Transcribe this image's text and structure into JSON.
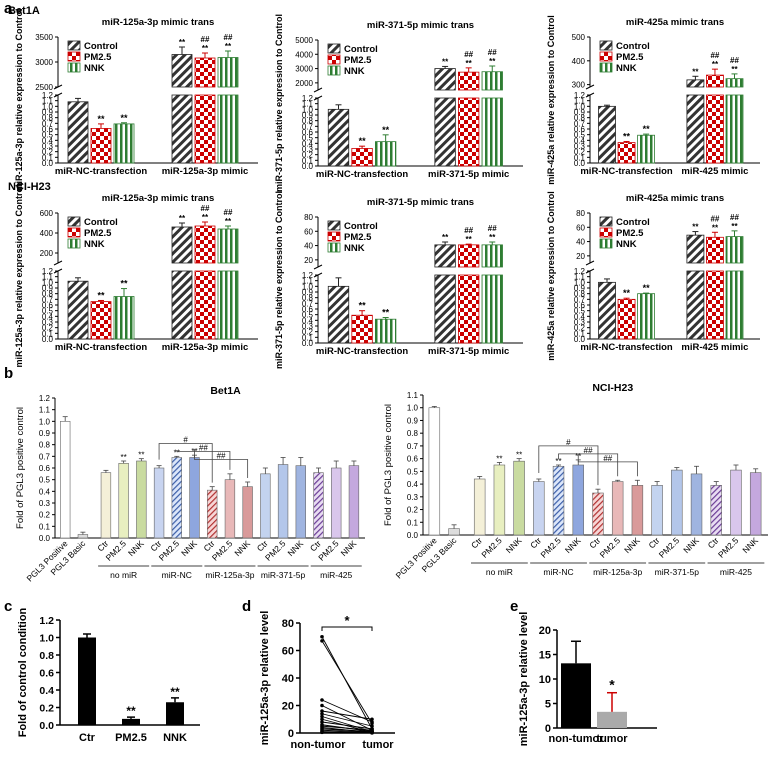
{
  "panel_labels": {
    "a": "a",
    "b": "b",
    "c": "c",
    "d": "d",
    "e": "e"
  },
  "colors": {
    "control": "#333333",
    "pm25": "#cc0000",
    "nnk": "#2e7d32",
    "black": "#000000",
    "grey": "#aaaaaa"
  },
  "chart_data": [
    {
      "id": "a1",
      "type": "bar",
      "group": "Bet1A",
      "title": "miR-125a-3p mimic trans",
      "ylabel": "miR-125a-3p relative expression to Control",
      "categories": [
        "miR-NC-transfection",
        "miR-125a-3p mimic"
      ],
      "legend": [
        "Control",
        "PM2.5",
        "NNK"
      ],
      "upper_ticks": [
        "2500",
        "3000",
        "3500"
      ],
      "upper_range": [
        2500,
        3500
      ],
      "series": [
        {
          "name": "Control",
          "values": [
            1.08,
            3150
          ],
          "errors": [
            0.06,
            150
          ]
        },
        {
          "name": "PM2.5",
          "values": [
            0.61,
            3080
          ],
          "errors": [
            0.08,
            100
          ]
        },
        {
          "name": "NNK",
          "values": [
            0.69,
            3090
          ],
          "errors": [
            0.02,
            130
          ]
        }
      ],
      "sig": [
        [
          "",
          "**",
          "**"
        ],
        [
          "**",
          "##\n**",
          "##\n**"
        ]
      ]
    },
    {
      "id": "a2",
      "type": "bar",
      "group": "Bet1A",
      "title": "miR-371-5p mimic trans",
      "ylabel": "miR-371-5p relative expression to Control",
      "categories": [
        "miR-NC-transfection",
        "miR-371-5p mimic"
      ],
      "legend": [
        "Control",
        "PM2.5",
        "NNK"
      ],
      "upper_ticks": [
        "2000",
        "3000",
        "4000",
        "5000"
      ],
      "upper_range": [
        1500,
        5000
      ],
      "series": [
        {
          "name": "Control",
          "values": [
            1.0,
            3000
          ],
          "errors": [
            0.08,
            150
          ]
        },
        {
          "name": "PM2.5",
          "values": [
            0.31,
            2750
          ],
          "errors": [
            0.04,
            300
          ]
        },
        {
          "name": "NNK",
          "values": [
            0.43,
            2780
          ],
          "errors": [
            0.12,
            400
          ]
        }
      ],
      "sig": [
        [
          "",
          "**",
          "**"
        ],
        [
          "**",
          "##\n**",
          "##\n**"
        ]
      ]
    },
    {
      "id": "a3",
      "type": "bar",
      "group": "Bet1A",
      "title": "miR-425a mimic trans",
      "ylabel": "miR-425a relative expression to Control",
      "categories": [
        "miR-NC-transfection",
        "miR-425 mimic"
      ],
      "legend": [
        "Control",
        "PM2.5",
        "NNK"
      ],
      "upper_ticks": [
        "300",
        "400",
        "500"
      ],
      "upper_range": [
        290,
        500
      ],
      "series": [
        {
          "name": "Control",
          "values": [
            1.0,
            320
          ],
          "errors": [
            0.02,
            15
          ]
        },
        {
          "name": "PM2.5",
          "values": [
            0.36,
            340
          ],
          "errors": [
            0.02,
            25
          ]
        },
        {
          "name": "NNK",
          "values": [
            0.49,
            325
          ],
          "errors": [
            0.02,
            20
          ]
        }
      ],
      "sig": [
        [
          "",
          "**",
          "**"
        ],
        [
          "**",
          "##\n**",
          "##\n**"
        ]
      ]
    },
    {
      "id": "a4",
      "type": "bar",
      "group": "NCI-H23",
      "title": "miR-125a-3p mimic trans",
      "ylabel": "miR-125a-3p relative expression to Control",
      "categories": [
        "miR-NC-transfection",
        "miR-125a-3p mimic"
      ],
      "legend": [
        "Control",
        "PM2.5",
        "NNK"
      ],
      "upper_ticks": [
        "200",
        "400",
        "600"
      ],
      "upper_range": [
        100,
        600
      ],
      "series": [
        {
          "name": "Control",
          "values": [
            1.02,
            460
          ],
          "errors": [
            0.06,
            40
          ]
        },
        {
          "name": "PM2.5",
          "values": [
            0.66,
            470
          ],
          "errors": [
            0.02,
            40
          ]
        },
        {
          "name": "NNK",
          "values": [
            0.75,
            440
          ],
          "errors": [
            0.14,
            30
          ]
        }
      ],
      "sig": [
        [
          "",
          "**",
          "**"
        ],
        [
          "**",
          "##\n**",
          "##\n**"
        ]
      ]
    },
    {
      "id": "a5",
      "type": "bar",
      "group": "NCI-H23",
      "title": "miR-371-5p mimic trans",
      "ylabel": "miR-371-5p relative expression to Control",
      "categories": [
        "miR-NC-transfection",
        "miR-371-5p mimic"
      ],
      "legend": [
        "Control",
        "PM2.5",
        "NNK"
      ],
      "upper_ticks": [
        "20",
        "40",
        "60",
        "80"
      ],
      "upper_range": [
        10,
        80
      ],
      "series": [
        {
          "name": "Control",
          "values": [
            1.0,
            41
          ],
          "errors": [
            0.15,
            4
          ]
        },
        {
          "name": "PM2.5",
          "values": [
            0.49,
            41
          ],
          "errors": [
            0.08,
            1
          ]
        },
        {
          "name": "NNK",
          "values": [
            0.42,
            41
          ],
          "errors": [
            0.03,
            4
          ]
        }
      ],
      "sig": [
        [
          "",
          "**",
          "**"
        ],
        [
          "**",
          "##\n**",
          "##\n**"
        ]
      ]
    },
    {
      "id": "a6",
      "type": "bar",
      "group": "NCI-H23",
      "title": "miR-425a mimic trans",
      "ylabel": "miR-425a relative expression to Control",
      "categories": [
        "miR-NC-transfection",
        "miR-425 mimic"
      ],
      "legend": [
        "Control",
        "PM2.5",
        "NNK"
      ],
      "upper_ticks": [
        "20",
        "40",
        "60",
        "80"
      ],
      "upper_range": [
        10,
        80
      ],
      "series": [
        {
          "name": "Control",
          "values": [
            1.0,
            49
          ],
          "errors": [
            0.06,
            5
          ]
        },
        {
          "name": "PM2.5",
          "values": [
            0.7,
            46
          ],
          "errors": [
            0.02,
            7
          ]
        },
        {
          "name": "NNK",
          "values": [
            0.8,
            47
          ],
          "errors": [
            0.01,
            8
          ]
        }
      ],
      "sig": [
        [
          "",
          "**",
          "**"
        ],
        [
          "**",
          "##\n**",
          "##\n**"
        ]
      ]
    },
    {
      "id": "b1",
      "type": "bar",
      "title": "Bet1A",
      "ylabel": "Fold of PGL3 positive control",
      "ylim": [
        0,
        1.2
      ],
      "yticks": [
        "0.0",
        "0.1",
        "0.2",
        "0.3",
        "0.4",
        "0.5",
        "0.6",
        "0.7",
        "0.8",
        "0.9",
        "1.0",
        "1.1",
        "1.2"
      ],
      "categories": [
        "PGL3 Positive",
        "PGL3 Basic",
        "Ctr",
        "PM2.5",
        "NNK",
        "Ctr",
        "PM2.5",
        "NNK",
        "Ctr",
        "PM2.5",
        "NNK",
        "Ctr",
        "PM2.5",
        "NNK",
        "Ctr",
        "PM2.5",
        "NNK"
      ],
      "groups": [
        "no miR",
        "miR-NC",
        "miR-125a-3p",
        "miR-371-5p",
        "miR-425"
      ],
      "values": [
        1.0,
        0.03,
        0.56,
        0.64,
        0.66,
        0.6,
        0.69,
        0.69,
        0.41,
        0.5,
        0.44,
        0.55,
        0.63,
        0.62,
        0.56,
        0.6,
        0.62
      ],
      "errors": [
        0.04,
        0.02,
        0.02,
        0.02,
        0.02,
        0.02,
        0.01,
        0.02,
        0.03,
        0.05,
        0.04,
        0.05,
        0.06,
        0.07,
        0.04,
        0.06,
        0.04
      ],
      "sig": [
        "",
        "",
        "",
        "**",
        "**",
        "",
        "**",
        "**",
        "",
        "",
        "",
        "",
        "",
        "",
        "",
        "",
        ""
      ],
      "brackets": [
        "#",
        "##",
        "##"
      ]
    },
    {
      "id": "b2",
      "type": "bar",
      "title": "NCI-H23",
      "ylabel": "Fold of PGL3 positive control",
      "ylim": [
        0,
        1.1
      ],
      "yticks": [
        "0.0",
        "0.1",
        "0.2",
        "0.3",
        "0.4",
        "0.5",
        "0.6",
        "0.7",
        "0.8",
        "0.9",
        "1.0",
        "1.1"
      ],
      "categories": [
        "PGL3 Positive",
        "PGL3 Basic",
        "Ctr",
        "PM2.5",
        "NNK",
        "Ctr",
        "PM2.5",
        "NNK",
        "Ctr",
        "PM2.5",
        "NNK",
        "Ctr",
        "PM2.5",
        "NNK",
        "Ctr",
        "PM2.5",
        "NNK"
      ],
      "groups": [
        "no miR",
        "miR-NC",
        "miR-125a-3p",
        "miR-371-5p",
        "miR-425"
      ],
      "values": [
        1.0,
        0.05,
        0.44,
        0.55,
        0.58,
        0.42,
        0.54,
        0.55,
        0.33,
        0.42,
        0.39,
        0.39,
        0.51,
        0.48,
        0.39,
        0.51,
        0.49
      ],
      "errors": [
        0.01,
        0.03,
        0.02,
        0.02,
        0.02,
        0.02,
        0.01,
        0.04,
        0.03,
        0.01,
        0.04,
        0.03,
        0.02,
        0.06,
        0.03,
        0.04,
        0.03
      ],
      "sig": [
        "",
        "",
        "",
        "**",
        "**",
        "",
        "**",
        "**",
        "",
        "",
        "",
        "",
        "",
        "",
        "",
        "",
        ""
      ],
      "brackets": [
        "#",
        "##",
        "##"
      ]
    },
    {
      "id": "c",
      "type": "bar",
      "ylabel": "Fold of control condition",
      "ylim": [
        0,
        1.2
      ],
      "yticks": [
        "0.0",
        "0.2",
        "0.4",
        "0.6",
        "0.8",
        "1.0",
        "1.2"
      ],
      "categories": [
        "Ctr",
        "PM2.5",
        "NNK"
      ],
      "values": [
        1.0,
        0.07,
        0.26
      ],
      "errors": [
        0.04,
        0.02,
        0.05
      ],
      "sig": [
        "",
        "**",
        "**"
      ]
    },
    {
      "id": "d",
      "type": "line",
      "ylabel": "miR-125a-3p relative level",
      "ylim": [
        0,
        80
      ],
      "yticks": [
        "0",
        "20",
        "40",
        "60",
        "80"
      ],
      "categories": [
        "non-tumor",
        "tumor"
      ],
      "pairs": [
        [
          70,
          3
        ],
        [
          67,
          7
        ],
        [
          24,
          8
        ],
        [
          20,
          2
        ],
        [
          16,
          10
        ],
        [
          14,
          5
        ],
        [
          12,
          1
        ],
        [
          10,
          0.5
        ],
        [
          8,
          3
        ],
        [
          6,
          1
        ],
        [
          5,
          2
        ],
        [
          4,
          0.3
        ],
        [
          3,
          1
        ],
        [
          2,
          0.5
        ],
        [
          1,
          0.2
        ],
        [
          0.5,
          0.1
        ]
      ],
      "sig": "*"
    },
    {
      "id": "e",
      "type": "bar",
      "ylabel": "miR-125a-3p relative level",
      "ylim": [
        0,
        20
      ],
      "yticks": [
        "0",
        "5",
        "10",
        "15",
        "20"
      ],
      "categories": [
        "non-tumor",
        "tumor"
      ],
      "values": [
        13.2,
        3.3
      ],
      "errors": [
        4.5,
        3.9
      ],
      "sig": [
        "",
        "*"
      ]
    }
  ]
}
